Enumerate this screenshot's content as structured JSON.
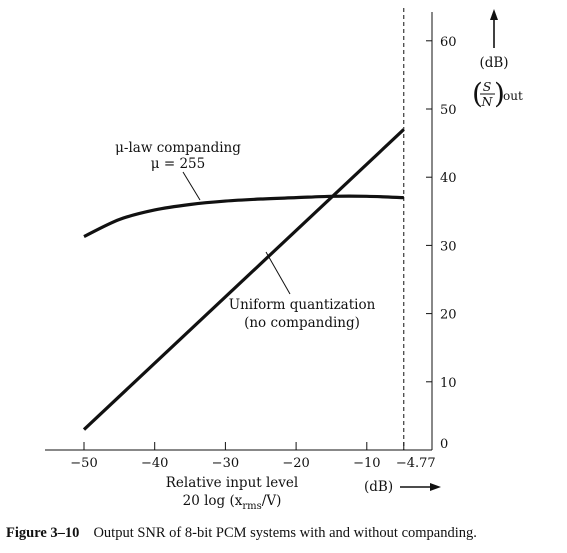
{
  "chart_data": {
    "type": "line",
    "xlim": [
      -50,
      -4.77
    ],
    "ylim": [
      0,
      60
    ],
    "x_ticks": [
      -50,
      -40,
      -30,
      -20,
      -10
    ],
    "x_ticks_extra": [
      "-4.77"
    ],
    "y_ticks": [
      0,
      10,
      20,
      30,
      40,
      50,
      60
    ],
    "xlabel_lines": [
      "Relative input level",
      "20 log (x_rms/V)"
    ],
    "xlabel_rms": "rms",
    "x_unit": "(dB)",
    "y_unit": "(dB)",
    "y_label_main": "S/N",
    "y_label_sub": "out",
    "vertical_dashed_line_x": -4.77,
    "grid": false,
    "series": [
      {
        "name": "Uniform quantization (no companding)",
        "label_lines": [
          "Uniform quantization",
          "(no companding)"
        ],
        "x": [
          -50,
          -4.77
        ],
        "y": [
          3,
          47
        ]
      },
      {
        "name": "μ-law companding μ = 255",
        "label_lines": [
          "μ-law companding",
          "μ = 255"
        ],
        "x": [
          -50,
          -45,
          -40,
          -35,
          -30,
          -25,
          -20,
          -15,
          -10,
          -4.77
        ],
        "y": [
          31.3,
          33.8,
          35.2,
          36,
          36.5,
          36.8,
          37.0,
          37.2,
          37.2,
          37.0
        ]
      }
    ]
  },
  "caption": {
    "number": "Figure 3–10",
    "text": "Output SNR of 8-bit PCM systems with and without companding."
  }
}
